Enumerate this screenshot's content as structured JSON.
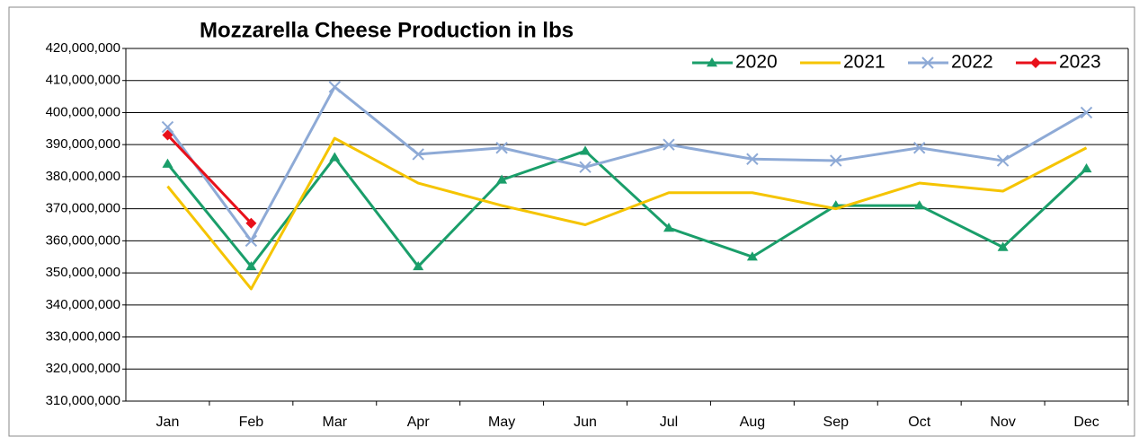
{
  "chart_data": {
    "type": "line",
    "title": "Mozzarella Cheese Production in lbs",
    "categories": [
      "Jan",
      "Feb",
      "Mar",
      "Apr",
      "May",
      "Jun",
      "Jul",
      "Aug",
      "Sep",
      "Oct",
      "Nov",
      "Dec"
    ],
    "series": [
      {
        "name": "2020",
        "color": "#1a9e6a",
        "marker": "triangle",
        "values": [
          384000000,
          352000000,
          386000000,
          352000000,
          379000000,
          388000000,
          364000000,
          355000000,
          371000000,
          371000000,
          358000000,
          382500000
        ]
      },
      {
        "name": "2021",
        "color": "#f5c400",
        "marker": "none",
        "values": [
          377000000,
          345000000,
          392000000,
          378000000,
          371000000,
          365000000,
          375000000,
          375000000,
          370000000,
          378000000,
          375500000,
          389000000
        ]
      },
      {
        "name": "2022",
        "color": "#8eaad6",
        "marker": "x",
        "values": [
          395500000,
          360000000,
          408000000,
          387000000,
          389000000,
          383000000,
          390000000,
          385500000,
          385000000,
          389000000,
          385000000,
          400000000
        ]
      },
      {
        "name": "2023",
        "color": "#e8101a",
        "marker": "diamond",
        "values": [
          393000000,
          365500000,
          null,
          null,
          null,
          null,
          null,
          null,
          null,
          null,
          null,
          null
        ]
      }
    ],
    "ylim": [
      310000000,
      420000000
    ],
    "yticks": [
      {
        "value": 310000000,
        "label": "310,000,000"
      },
      {
        "value": 320000000,
        "label": "320,000,000"
      },
      {
        "value": 330000000,
        "label": "330,000,000"
      },
      {
        "value": 340000000,
        "label": "340,000,000"
      },
      {
        "value": 350000000,
        "label": "350,000,000"
      },
      {
        "value": 360000000,
        "label": "360,000,000"
      },
      {
        "value": 370000000,
        "label": "370,000,000"
      },
      {
        "value": 380000000,
        "label": "380,000,000"
      },
      {
        "value": 390000000,
        "label": "390,000,000"
      },
      {
        "value": 400000000,
        "label": "400,000,000"
      },
      {
        "value": 410000000,
        "label": "410,000,000"
      },
      {
        "value": 420000000,
        "label": "420,000,000"
      }
    ],
    "grid": true,
    "legend": "top-right"
  }
}
